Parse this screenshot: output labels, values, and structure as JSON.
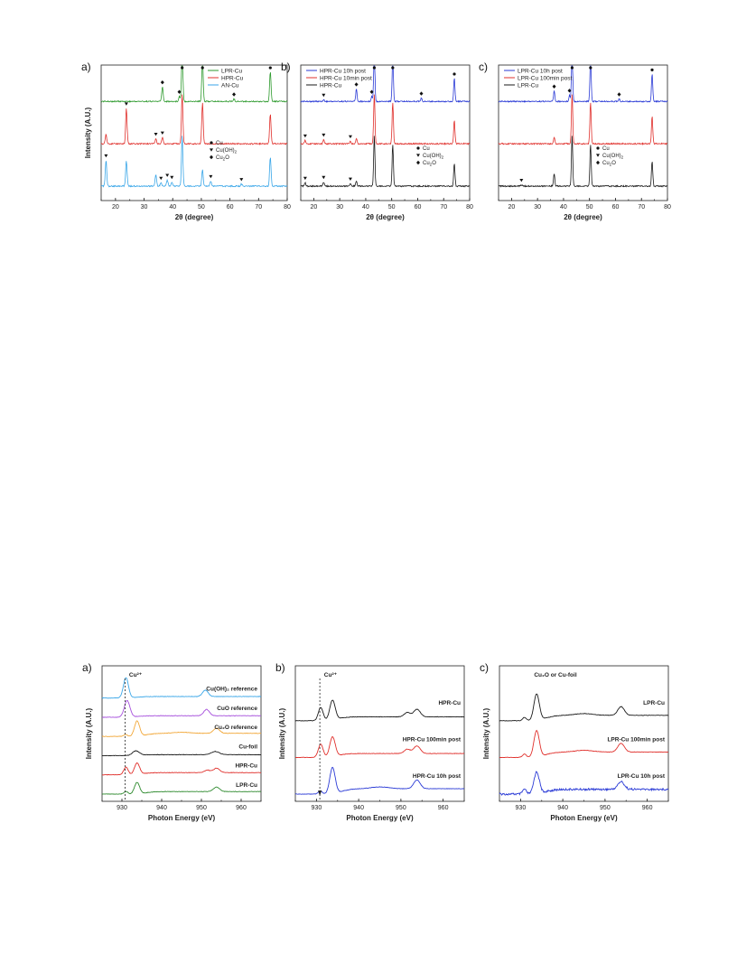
{
  "colors": {
    "black": "#1a1a1a",
    "red": "#e0302c",
    "blue": "#2b3bd6",
    "green": "#2e9a2e",
    "cyan": "#39a6e8",
    "purple": "#a64fdc",
    "orange": "#f2a83a",
    "dark_green": "#2e8a2e"
  },
  "chart_data": [
    {
      "id": "xrd_a",
      "type": "line",
      "panel_label": "a)",
      "xlabel": "2θ (degree)",
      "ylabel": "Intensity (A.U.)",
      "xlim": [
        15,
        80
      ],
      "xticks": [
        20,
        30,
        40,
        50,
        60,
        70,
        80
      ],
      "legend": [
        "LPR-Cu",
        "HPR-Cu",
        "AN-Cu"
      ],
      "marker_legend": [
        "Cu",
        "Cu(OH)2",
        "Cu2O"
      ],
      "series": [
        {
          "name": "LPR-Cu",
          "color": "#2e9a2e",
          "offset": 2,
          "peaks": [
            [
              36.4,
              0.35
            ],
            [
              42.3,
              0.12
            ],
            [
              43.3,
              1.2
            ],
            [
              50.4,
              1.0
            ],
            [
              61.4,
              0.06
            ],
            [
              74.1,
              0.7
            ]
          ],
          "markers": [
            [
              36.4,
              "diamond"
            ],
            [
              42.3,
              "diamond"
            ],
            [
              43.3,
              "circle"
            ],
            [
              50.4,
              "circle"
            ],
            [
              61.4,
              "diamond"
            ],
            [
              74.1,
              "circle"
            ]
          ]
        },
        {
          "name": "HPR-Cu",
          "color": "#e0302c",
          "offset": 1,
          "peaks": [
            [
              16.7,
              0.22
            ],
            [
              23.8,
              0.85
            ],
            [
              34.1,
              0.12
            ],
            [
              36.4,
              0.15
            ],
            [
              43.3,
              1.2
            ],
            [
              50.4,
              1.0
            ],
            [
              74.1,
              0.7
            ]
          ],
          "markers": [
            [
              23.8,
              "triangle"
            ],
            [
              34.1,
              "triangle"
            ],
            [
              36.4,
              "triangle"
            ]
          ]
        },
        {
          "name": "AN-Cu",
          "color": "#39a6e8",
          "offset": 0,
          "peaks": [
            [
              16.7,
              0.62
            ],
            [
              23.8,
              0.62
            ],
            [
              34.1,
              0.28
            ],
            [
              35.9,
              0.08
            ],
            [
              38.1,
              0.15
            ],
            [
              39.7,
              0.1
            ],
            [
              43.3,
              1.2
            ],
            [
              50.4,
              0.4
            ],
            [
              53.3,
              0.12
            ],
            [
              64.0,
              0.05
            ],
            [
              74.1,
              0.7
            ]
          ],
          "markers": [
            [
              16.7,
              "triangle"
            ],
            [
              35.9,
              "triangle"
            ],
            [
              38.1,
              "triangle"
            ],
            [
              39.7,
              "triangle"
            ],
            [
              53.3,
              "triangle"
            ],
            [
              64.0,
              "triangle"
            ]
          ]
        }
      ]
    },
    {
      "id": "xrd_b",
      "type": "line",
      "panel_label": "b)",
      "xlabel": "2θ (degree)",
      "ylabel": "",
      "xlim": [
        15,
        80
      ],
      "xticks": [
        20,
        30,
        40,
        50,
        60,
        70,
        80
      ],
      "legend": [
        "HPR-Cu 10h post",
        "HPR-Cu 10min post",
        "HPR-Cu"
      ],
      "marker_legend": [
        "Cu",
        "Cu(OH)2",
        "Cu2O"
      ],
      "series": [
        {
          "name": "HPR-Cu 10h post",
          "color": "#2b3bd6",
          "offset": 2,
          "peaks": [
            [
              23.8,
              0.04
            ],
            [
              36.4,
              0.3
            ],
            [
              42.3,
              0.12
            ],
            [
              43.3,
              1.2
            ],
            [
              50.4,
              1.0
            ],
            [
              61.4,
              0.08
            ],
            [
              74.1,
              0.55
            ]
          ],
          "markers": [
            [
              23.8,
              "triangle"
            ],
            [
              36.4,
              "diamond"
            ],
            [
              42.3,
              "diamond"
            ],
            [
              43.3,
              "circle"
            ],
            [
              50.4,
              "circle"
            ],
            [
              61.4,
              "diamond"
            ],
            [
              74.1,
              "circle"
            ]
          ]
        },
        {
          "name": "HPR-Cu 10min post",
          "color": "#e0302c",
          "offset": 1,
          "peaks": [
            [
              16.7,
              0.08
            ],
            [
              23.8,
              0.1
            ],
            [
              34.1,
              0.06
            ],
            [
              36.4,
              0.12
            ],
            [
              43.3,
              1.2
            ],
            [
              50.4,
              1.0
            ],
            [
              74.1,
              0.55
            ]
          ],
          "markers": [
            [
              16.7,
              "triangle"
            ],
            [
              23.8,
              "triangle"
            ],
            [
              34.1,
              "triangle"
            ]
          ]
        },
        {
          "name": "HPR-Cu",
          "color": "#1a1a1a",
          "offset": 0,
          "peaks": [
            [
              16.7,
              0.08
            ],
            [
              23.8,
              0.1
            ],
            [
              34.1,
              0.06
            ],
            [
              36.4,
              0.12
            ],
            [
              43.3,
              1.2
            ],
            [
              50.4,
              1.0
            ],
            [
              74.1,
              0.55
            ]
          ],
          "markers": [
            [
              16.7,
              "triangle"
            ],
            [
              23.8,
              "triangle"
            ],
            [
              34.1,
              "triangle"
            ]
          ]
        }
      ]
    },
    {
      "id": "xrd_c",
      "type": "line",
      "panel_label": "c)",
      "xlabel": "2θ (degree)",
      "ylabel": "",
      "xlim": [
        15,
        80
      ],
      "xticks": [
        20,
        30,
        40,
        50,
        60,
        70,
        80
      ],
      "legend": [
        "LPR-Cu 10h post",
        "LPR-Cu 100min post",
        "LPR-Cu"
      ],
      "marker_legend": [
        "Cu",
        "Cu(OH)2",
        "Cu2O"
      ],
      "series": [
        {
          "name": "LPR-Cu 10h post",
          "color": "#2b3bd6",
          "offset": 2,
          "peaks": [
            [
              36.4,
              0.25
            ],
            [
              42.3,
              0.15
            ],
            [
              43.3,
              1.2
            ],
            [
              50.4,
              1.0
            ],
            [
              61.4,
              0.06
            ],
            [
              74.1,
              0.65
            ]
          ],
          "markers": [
            [
              36.4,
              "diamond"
            ],
            [
              42.3,
              "diamond"
            ],
            [
              43.3,
              "circle"
            ],
            [
              50.4,
              "circle"
            ],
            [
              61.4,
              "diamond"
            ],
            [
              74.1,
              "circle"
            ]
          ]
        },
        {
          "name": "LPR-Cu 100min post",
          "color": "#e0302c",
          "offset": 1,
          "peaks": [
            [
              36.4,
              0.15
            ],
            [
              43.3,
              1.2
            ],
            [
              50.4,
              1.0
            ],
            [
              74.1,
              0.65
            ]
          ],
          "markers": []
        },
        {
          "name": "LPR-Cu",
          "color": "#1a1a1a",
          "offset": 0,
          "peaks": [
            [
              23.8,
              0.03
            ],
            [
              36.4,
              0.3
            ],
            [
              43.3,
              1.2
            ],
            [
              50.4,
              1.0
            ],
            [
              74.1,
              0.6
            ]
          ],
          "markers": [
            [
              23.8,
              "triangle"
            ]
          ]
        }
      ]
    },
    {
      "id": "xas_a",
      "type": "line",
      "panel_label": "a)",
      "xlabel": "Photon Energy (eV)",
      "ylabel": "Intensity (A.U.)",
      "xlim": [
        925,
        965
      ],
      "xticks": [
        930,
        940,
        950,
        960
      ],
      "peak_label": "Cu²⁺",
      "series": [
        {
          "name": "Cu(OH)2 reference",
          "color": "#39a6e8",
          "offset": 5,
          "profile": "cu2plus_strong",
          "label": "Cu(OH)₂ reference"
        },
        {
          "name": "CuO reference",
          "color": "#a64fdc",
          "offset": 4,
          "profile": "cu2plus",
          "label": "CuO reference"
        },
        {
          "name": "Cu2O reference",
          "color": "#f2a83a",
          "offset": 3,
          "profile": "cu1plus",
          "label": "Cu₂O reference"
        },
        {
          "name": "Cu-foil",
          "color": "#1a1a1a",
          "offset": 2,
          "profile": "cufoil",
          "label": "Cu-foil"
        },
        {
          "name": "HPR-Cu",
          "color": "#e0302c",
          "offset": 1,
          "profile": "mixed",
          "label": "HPR-Cu"
        },
        {
          "name": "LPR-Cu",
          "color": "#2e8a2e",
          "offset": 0,
          "profile": "cu1plus_small",
          "label": "LPR-Cu"
        }
      ]
    },
    {
      "id": "xas_b",
      "type": "line",
      "panel_label": "b)",
      "xlabel": "Photon Energy (eV)",
      "ylabel": "Intensity (A.U.)",
      "xlim": [
        925,
        965
      ],
      "xticks": [
        930,
        940,
        950,
        960
      ],
      "peak_label": "Cu²⁺",
      "series": [
        {
          "name": "HPR-Cu",
          "color": "#1a1a1a",
          "offset": 2,
          "profile": "mixed",
          "label": "HPR-Cu"
        },
        {
          "name": "HPR-Cu 100min post",
          "color": "#e0302c",
          "offset": 1,
          "profile": "mixed",
          "label": "HPR-Cu 100min post"
        },
        {
          "name": "HPR-Cu 10h post",
          "color": "#2b3bd6",
          "offset": 0,
          "profile": "cu1plus",
          "label": "HPR-Cu 10h post"
        }
      ]
    },
    {
      "id": "xas_c",
      "type": "line",
      "panel_label": "c)",
      "xlabel": "Photon Energy (eV)",
      "ylabel": "Intensity (A.U.)",
      "xlim": [
        925,
        965
      ],
      "xticks": [
        930,
        940,
        950,
        960
      ],
      "peak_label": "Cu₂O or Cu-foil",
      "series": [
        {
          "name": "LPR-Cu",
          "color": "#1a1a1a",
          "offset": 2,
          "profile": "cu1plus",
          "label": "LPR-Cu"
        },
        {
          "name": "LPR-Cu 100min post",
          "color": "#e0302c",
          "offset": 1,
          "profile": "cu1plus",
          "label": "LPR-Cu 100min post"
        },
        {
          "name": "LPR-Cu 10h post",
          "color": "#2b3bd6",
          "offset": 0,
          "profile": "cu1plus_noisy",
          "label": "LPR-Cu 10h post"
        }
      ]
    }
  ]
}
